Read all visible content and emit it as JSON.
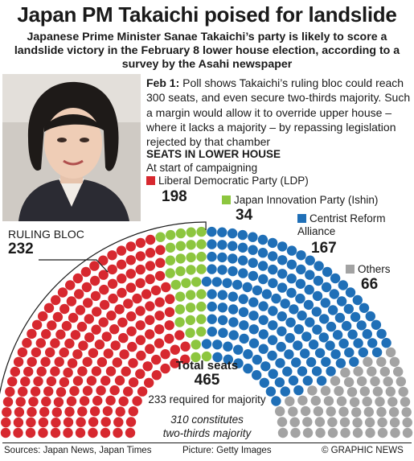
{
  "title": "Japan PM Takaichi poised for landslide",
  "subtitle": "Japanese Prime Minister Sanae Takaichi’s party is likely to score a landslide victory in the February 8 lower house election, according to a survey by the Asahi newspaper",
  "story": {
    "date": "Feb 1:",
    "text": " Poll shows Takaichi’s ruling bloc could reach 300 seats, and even secure two-thirds majority. Such a margin would allow it to override upper house – where it lacks a majority – by repassing legislation rejected by that chamber"
  },
  "chart_data": {
    "type": "parliament",
    "title": "SEATS IN LOWER HOUSE",
    "subtitle": "At start of campaigning",
    "series": [
      {
        "name": "Liberal Democratic Party (LDP)",
        "value": 198,
        "color": "#d7282f"
      },
      {
        "name": "Japan Innovation Party (Ishin)",
        "value": 34,
        "color": "#8dc63f"
      },
      {
        "name": "Centrist Reform Alliance",
        "value": 167,
        "color": "#1f6fb7"
      },
      {
        "name": "Others",
        "value": 66,
        "color": "#a3a3a3"
      }
    ],
    "ruling_bloc": {
      "label": "RULING BLOC",
      "value": 232
    },
    "total": {
      "label": "Total seats",
      "value": 465
    },
    "majority_text": "233 required for majority",
    "two_thirds_text": "310 constitutes two-thirds majority"
  },
  "legend": {
    "ldp_label": "Liberal Democratic Party (LDP)",
    "ldp_value": "198",
    "ishin_label": "Japan Innovation Party (Ishin)",
    "ishin_value": "34",
    "cra_label_1": "Centrist Reform",
    "cra_label_2": "Alliance",
    "cra_value": "167",
    "others_label": "Others",
    "others_value": "66"
  },
  "ruling": {
    "label": "RULING BLOC",
    "value": "232"
  },
  "total": {
    "label": "Total seats",
    "value": "465"
  },
  "majority": "233 required for majority",
  "two_thirds": {
    "line1": "310 constitutes",
    "line2": "two-thirds majority"
  },
  "footer": {
    "sources": "Sources: Japan News, Japan Times",
    "picture": "Picture: Getty Images",
    "credit": "© GRAPHIC NEWS"
  }
}
